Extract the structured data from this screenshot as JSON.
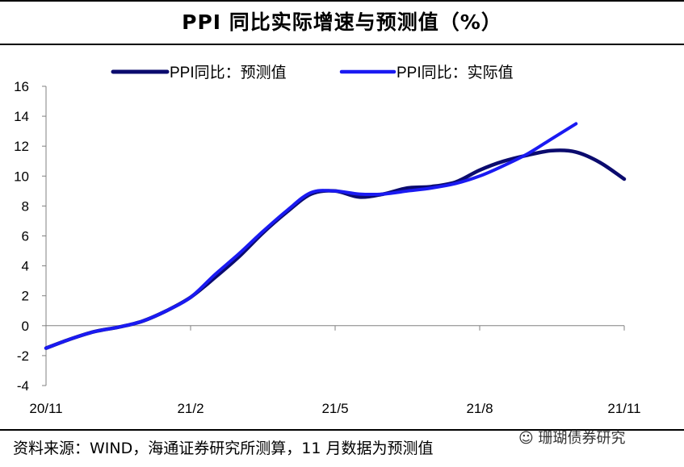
{
  "header": {
    "title": "PPI 同比实际增速与预测值（%）"
  },
  "footer": {
    "source": "资料来源：WIND，海通证券研究所测算，11 月数据为预测值",
    "watermark": "珊瑚债券研究"
  },
  "colors": {
    "forecast": "#0b0b6e",
    "actual": "#1a1af2",
    "axis": "#808080",
    "text": "#000000"
  },
  "chart_data": {
    "type": "line",
    "title": "PPI 同比实际增速与预测值（%）",
    "xlabel": "",
    "ylabel": "",
    "x_tick_labels": [
      "20/11",
      "21/2",
      "21/5",
      "21/8",
      "21/11"
    ],
    "y_ticks": [
      -4,
      -2,
      0,
      2,
      4,
      6,
      8,
      10,
      12,
      14,
      16
    ],
    "ylim": [
      -4,
      16
    ],
    "legend_position": "top",
    "series": [
      {
        "name": "PPI同比：预测值",
        "x": [
          0,
          0.5,
          1,
          1.5,
          2,
          2.5,
          3,
          3.5,
          4,
          4.5,
          5,
          5.5,
          6,
          6.5,
          7,
          7.5,
          8,
          8.5,
          9,
          9.5,
          10,
          10.5,
          11,
          11.5,
          12
        ],
        "values": [
          -1.5,
          -0.9,
          -0.4,
          -0.1,
          0.3,
          1.0,
          1.9,
          3.2,
          4.6,
          6.2,
          7.6,
          8.8,
          9.0,
          8.6,
          8.8,
          9.2,
          9.3,
          9.6,
          10.4,
          11.0,
          11.4,
          11.7,
          11.6,
          10.9,
          9.8
        ]
      },
      {
        "name": "PPI同比：实际值",
        "x": [
          0,
          0.5,
          1,
          1.5,
          2,
          2.5,
          3,
          3.5,
          4,
          4.5,
          5,
          5.5,
          6,
          6.5,
          7,
          7.5,
          8,
          8.5,
          9,
          9.5,
          10,
          10.5,
          11
        ],
        "values": [
          -1.5,
          -0.9,
          -0.4,
          -0.1,
          0.3,
          1.0,
          1.9,
          3.4,
          4.8,
          6.3,
          7.7,
          8.9,
          9.0,
          8.8,
          8.8,
          9.0,
          9.2,
          9.5,
          10.0,
          10.7,
          11.5,
          12.5,
          13.5
        ]
      }
    ]
  }
}
